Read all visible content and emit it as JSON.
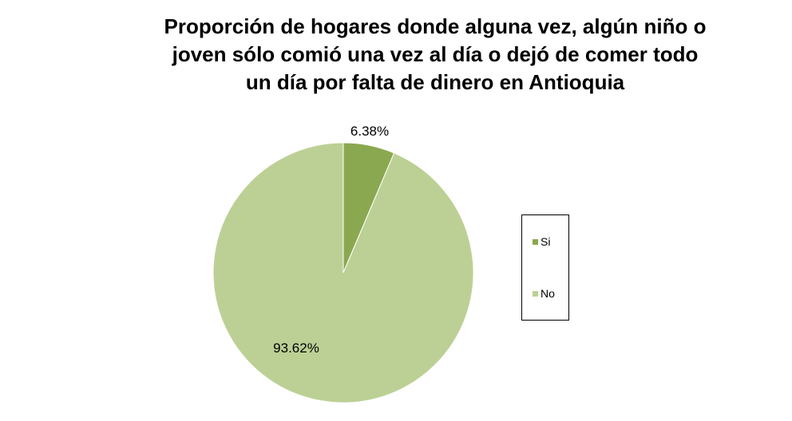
{
  "chart_data": {
    "type": "pie",
    "title_lines": [
      "Proporción de hogares donde alguna vez, algún niño o",
      "joven sólo comió una vez al  día o dejó de comer todo",
      "un día por falta de dinero en Antioquia"
    ],
    "categories": [
      "Si",
      "No"
    ],
    "values": [
      6.38,
      93.62
    ],
    "data_labels": [
      "6.38%",
      "93.62%"
    ],
    "colors": [
      "#8aa84f",
      "#bcd095"
    ],
    "legend_position": "right",
    "start_angle_deg": 0,
    "direction": "clockwise"
  }
}
